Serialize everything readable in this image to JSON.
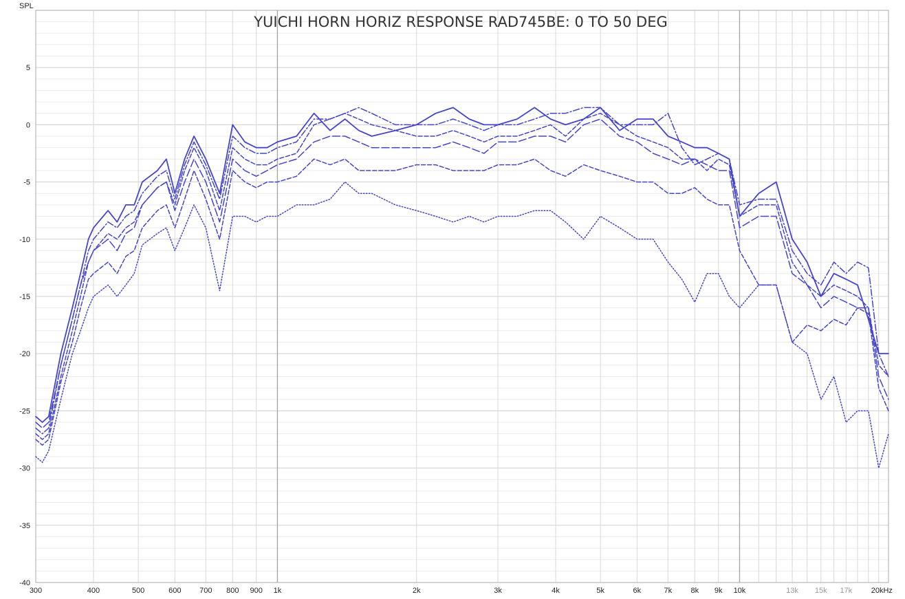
{
  "chart_data": {
    "type": "line",
    "title": "YUICHI HORN HORIZ RESPONSE RAD745BE: 0 TO 50 DEG",
    "ylabel": "SPL",
    "xlabel": "",
    "x_scale": "log",
    "xlim": [
      300,
      21000
    ],
    "ylim": [
      -40,
      10
    ],
    "grid": true,
    "line_color": "#4444cc",
    "y_ticks": [
      {
        "value": 5,
        "label": "5"
      },
      {
        "value": 0,
        "label": "0"
      },
      {
        "value": -5,
        "label": "-5"
      },
      {
        "value": -10,
        "label": "-10"
      },
      {
        "value": -15,
        "label": "-15"
      },
      {
        "value": -20,
        "label": "-20"
      },
      {
        "value": -25,
        "label": "-25"
      },
      {
        "value": -30,
        "label": "-30"
      },
      {
        "value": -35,
        "label": "-35"
      },
      {
        "value": -40,
        "label": "-40"
      }
    ],
    "x_ticks": [
      {
        "value": 300,
        "label": "300",
        "faint": false
      },
      {
        "value": 400,
        "label": "400",
        "faint": false
      },
      {
        "value": 500,
        "label": "500",
        "faint": false
      },
      {
        "value": 600,
        "label": "600",
        "faint": false
      },
      {
        "value": 700,
        "label": "700",
        "faint": false
      },
      {
        "value": 800,
        "label": "800",
        "faint": false
      },
      {
        "value": 900,
        "label": "900",
        "faint": false
      },
      {
        "value": 1000,
        "label": "1k",
        "faint": false
      },
      {
        "value": 2000,
        "label": "2k",
        "faint": false
      },
      {
        "value": 3000,
        "label": "3k",
        "faint": false
      },
      {
        "value": 4000,
        "label": "4k",
        "faint": false
      },
      {
        "value": 5000,
        "label": "5k",
        "faint": false
      },
      {
        "value": 6000,
        "label": "6k",
        "faint": false
      },
      {
        "value": 7000,
        "label": "7k",
        "faint": false
      },
      {
        "value": 8000,
        "label": "8k",
        "faint": false
      },
      {
        "value": 9000,
        "label": "9k",
        "faint": false
      },
      {
        "value": 10000,
        "label": "10k",
        "faint": false
      },
      {
        "value": 13000,
        "label": "13k",
        "faint": true
      },
      {
        "value": 15000,
        "label": "15k",
        "faint": true
      },
      {
        "value": 17000,
        "label": "17k",
        "faint": true
      },
      {
        "value": 20000,
        "label": "20kHz",
        "faint": false
      }
    ],
    "series": [
      {
        "style": "solid",
        "x": [
          300,
          310,
          320,
          340,
          360,
          375,
          390,
          400,
          430,
          450,
          470,
          490,
          510,
          550,
          575,
          600,
          630,
          660,
          700,
          750,
          800,
          850,
          900,
          950,
          1000,
          1100,
          1200,
          1300,
          1400,
          1500,
          1600,
          1800,
          2000,
          2200,
          2400,
          2600,
          2800,
          3000,
          3300,
          3600,
          3900,
          4200,
          4600,
          5000,
          5500,
          6000,
          6500,
          7000,
          7500,
          8000,
          8500,
          9000,
          9500,
          10000,
          11000,
          12000,
          13000,
          14000,
          15000,
          16000,
          17000,
          18000,
          19000,
          20000,
          21000
        ],
        "y": [
          -25.5,
          -26,
          -25.5,
          -20,
          -16,
          -13,
          -10,
          -9,
          -7.5,
          -8.5,
          -7,
          -7,
          -5,
          -4,
          -3,
          -6,
          -3,
          -1,
          -3,
          -6,
          0,
          -1.5,
          -2,
          -2,
          -1.5,
          -1,
          1,
          -0.5,
          0.5,
          -0.5,
          -1,
          -0.5,
          0,
          1,
          1.5,
          0.5,
          0,
          0,
          0.5,
          1.5,
          0.5,
          0,
          0.5,
          1.5,
          -0.5,
          0.5,
          0.5,
          -1,
          -1.5,
          -2,
          -2,
          -2.5,
          -3,
          -8,
          -6,
          -5,
          -10,
          -12,
          -15,
          -13,
          -13.5,
          -14,
          -17,
          -20,
          -20
        ]
      },
      {
        "style": "dashdot",
        "x": [
          300,
          310,
          320,
          340,
          360,
          375,
          390,
          400,
          430,
          450,
          470,
          490,
          510,
          550,
          575,
          600,
          630,
          660,
          700,
          750,
          800,
          850,
          900,
          950,
          1000,
          1100,
          1200,
          1300,
          1400,
          1500,
          1600,
          1800,
          2000,
          2200,
          2400,
          2600,
          2800,
          3000,
          3300,
          3600,
          3900,
          4200,
          4600,
          5000,
          5500,
          6000,
          6500,
          7000,
          7500,
          8000,
          8500,
          9000,
          9500,
          10000,
          11000,
          12000,
          13000,
          14000,
          15000,
          16000,
          17000,
          18000,
          19000,
          20000,
          21000
        ],
        "y": [
          -26.5,
          -27,
          -26.5,
          -21,
          -17,
          -14,
          -11,
          -10,
          -8.5,
          -9,
          -8,
          -7.5,
          -6,
          -4.5,
          -4,
          -6.5,
          -3.5,
          -1.5,
          -3.5,
          -6.5,
          -1,
          -2,
          -2.5,
          -2.5,
          -2,
          -1.5,
          0.5,
          0.5,
          1,
          1.5,
          1,
          0,
          0,
          0,
          0.5,
          0,
          -0.5,
          0,
          0,
          0.5,
          1,
          1,
          1.5,
          1.5,
          0,
          0,
          0,
          1,
          -2,
          -3.5,
          -3,
          -2.5,
          -3,
          -7,
          -6.5,
          -6.5,
          -11,
          -13,
          -14,
          -12,
          -13,
          -12,
          -12.5,
          -20,
          -22
        ]
      },
      {
        "style": "dashed",
        "x": [
          300,
          310,
          320,
          340,
          360,
          375,
          390,
          400,
          430,
          450,
          470,
          490,
          510,
          550,
          575,
          600,
          630,
          660,
          700,
          750,
          800,
          850,
          900,
          950,
          1000,
          1100,
          1200,
          1300,
          1400,
          1500,
          1600,
          1800,
          2000,
          2200,
          2400,
          2600,
          2800,
          3000,
          3300,
          3600,
          3900,
          4200,
          4600,
          5000,
          5500,
          6000,
          6500,
          7000,
          7500,
          8000,
          8500,
          9000,
          9500,
          10000,
          11000,
          12000,
          13000,
          14000,
          15000,
          16000,
          17000,
          18000,
          19000,
          20000,
          21000
        ],
        "y": [
          -27,
          -27.5,
          -27,
          -22,
          -18,
          -15,
          -12,
          -11,
          -9.5,
          -10,
          -9,
          -8.5,
          -7,
          -5.5,
          -5,
          -7,
          -4,
          -2,
          -4,
          -7.5,
          -2,
          -3,
          -3.5,
          -3.5,
          -3,
          -2.5,
          0,
          0.5,
          1,
          0.5,
          0,
          -0.5,
          -1,
          -1,
          -0.5,
          -1,
          -1.5,
          -1,
          -1,
          -0.5,
          0,
          -1,
          0.5,
          1,
          0,
          -1,
          -1.5,
          -2,
          -3,
          -3,
          -4,
          -3,
          -3.5,
          -8,
          -7,
          -7,
          -12,
          -14,
          -15,
          -14,
          -14.5,
          -15,
          -16,
          -21,
          -22
        ]
      },
      {
        "style": "longdash",
        "x": [
          300,
          310,
          320,
          340,
          360,
          375,
          390,
          400,
          430,
          450,
          470,
          490,
          510,
          550,
          575,
          600,
          630,
          660,
          700,
          750,
          800,
          850,
          900,
          950,
          1000,
          1100,
          1200,
          1300,
          1400,
          1500,
          1600,
          1800,
          2000,
          2200,
          2400,
          2600,
          2800,
          3000,
          3300,
          3600,
          3900,
          4200,
          4600,
          5000,
          5500,
          6000,
          6500,
          7000,
          7500,
          8000,
          8500,
          9000,
          9500,
          10000,
          11000,
          12000,
          13000,
          14000,
          15000,
          16000,
          17000,
          18000,
          19000,
          20000,
          21000
        ],
        "y": [
          -26,
          -26.5,
          -26,
          -21,
          -17,
          -14,
          -12,
          -11,
          -10,
          -11,
          -9.5,
          -9,
          -7,
          -5.5,
          -5,
          -7.5,
          -5,
          -3,
          -5,
          -8.5,
          -3,
          -4,
          -4.5,
          -4,
          -3.5,
          -3,
          -1.5,
          -1,
          -1,
          -1.5,
          -2,
          -2,
          -2,
          -2,
          -1.5,
          -2,
          -2.5,
          -1.5,
          -1.5,
          -1,
          -1,
          -1.5,
          0,
          0.5,
          -1,
          -1.5,
          -2.5,
          -3,
          -3.5,
          -3,
          -3.5,
          -4,
          -4,
          -9,
          -8,
          -8,
          -13,
          -14,
          -16,
          -15,
          -15.5,
          -16,
          -16,
          -22,
          -24
        ]
      },
      {
        "style": "dashed",
        "x": [
          300,
          310,
          320,
          340,
          360,
          375,
          390,
          400,
          430,
          450,
          470,
          490,
          510,
          550,
          575,
          600,
          630,
          660,
          700,
          750,
          800,
          850,
          900,
          950,
          1000,
          1100,
          1200,
          1300,
          1400,
          1500,
          1600,
          1800,
          2000,
          2200,
          2400,
          2600,
          2800,
          3000,
          3300,
          3600,
          3900,
          4200,
          4600,
          5000,
          5500,
          6000,
          6500,
          7000,
          7500,
          8000,
          8500,
          9000,
          9500,
          10000,
          11000,
          12000,
          13000,
          14000,
          15000,
          16000,
          17000,
          18000,
          19000,
          20000,
          21000
        ],
        "y": [
          -27.5,
          -28,
          -27.5,
          -22.5,
          -19,
          -16,
          -13.5,
          -13,
          -12,
          -13,
          -11.5,
          -11,
          -9,
          -7.5,
          -7,
          -9,
          -6.5,
          -4,
          -6.5,
          -10,
          -4,
          -5,
          -5.5,
          -5,
          -5,
          -4.5,
          -3,
          -3.5,
          -3,
          -4,
          -4,
          -4,
          -3.5,
          -3.5,
          -4,
          -4,
          -4,
          -3.5,
          -3.5,
          -3,
          -4,
          -4.5,
          -3.5,
          -4,
          -4.5,
          -5,
          -5,
          -6,
          -6,
          -5.5,
          -6.5,
          -7,
          -7,
          -11,
          -14,
          -14,
          -19,
          -17.5,
          -18,
          -17,
          -17.5,
          -16,
          -16.5,
          -23,
          -25
        ]
      },
      {
        "style": "dotted",
        "x": [
          300,
          310,
          320,
          340,
          360,
          375,
          390,
          400,
          430,
          450,
          470,
          490,
          510,
          550,
          575,
          600,
          630,
          660,
          700,
          750,
          800,
          850,
          900,
          950,
          1000,
          1100,
          1200,
          1300,
          1400,
          1500,
          1600,
          1800,
          2000,
          2200,
          2400,
          2600,
          2800,
          3000,
          3300,
          3600,
          3900,
          4200,
          4600,
          5000,
          5500,
          6000,
          6500,
          7000,
          7500,
          8000,
          8500,
          9000,
          9500,
          10000,
          11000,
          12000,
          13000,
          14000,
          15000,
          16000,
          17000,
          18000,
          19000,
          20000,
          21000
        ],
        "y": [
          -29,
          -29.5,
          -28.5,
          -24,
          -20,
          -18,
          -16,
          -15,
          -14,
          -15,
          -14,
          -13,
          -10.5,
          -9.5,
          -9,
          -11,
          -9,
          -7,
          -9,
          -14.5,
          -8,
          -8,
          -8.5,
          -8,
          -8,
          -7,
          -7,
          -6.5,
          -5,
          -6,
          -6,
          -7,
          -7.5,
          -8,
          -8.5,
          -8,
          -8.5,
          -8,
          -8,
          -7.5,
          -7.5,
          -8.5,
          -10,
          -8,
          -9,
          -10,
          -10,
          -12,
          -13.5,
          -15.5,
          -13,
          -13,
          -15,
          -16,
          -14,
          -14,
          -19,
          -20,
          -24,
          -22,
          -26,
          -25,
          -25,
          -30,
          -27
        ]
      }
    ]
  }
}
